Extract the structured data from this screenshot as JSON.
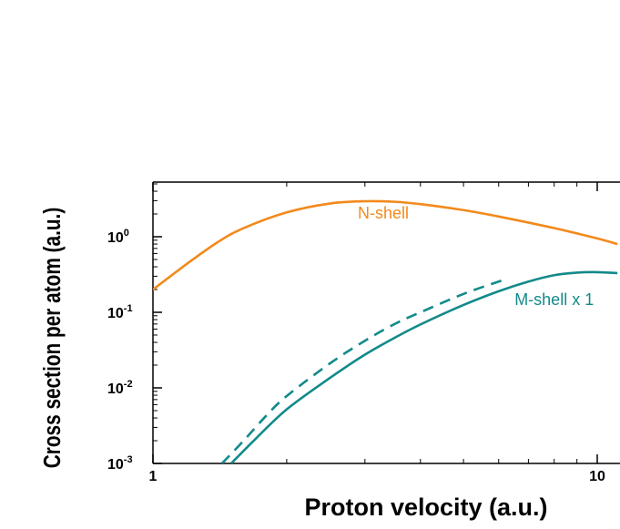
{
  "chart_data": {
    "type": "line",
    "title": "",
    "xlabel": "Proton velocity (a.u.)",
    "ylabel": "Cross section per atom (a.u.)",
    "xscale": "log",
    "yscale": "log",
    "xlim": [
      1,
      11.1
    ],
    "ylim": [
      0.001,
      5
    ],
    "grid": false,
    "x_ticks": [
      {
        "value": 1,
        "label": "1"
      },
      {
        "value": 10,
        "label": "10"
      }
    ],
    "y_ticks": [
      {
        "value": 0.001,
        "base": "10",
        "exp": "-3"
      },
      {
        "value": 0.01,
        "base": "10",
        "exp": "-2"
      },
      {
        "value": 0.1,
        "base": "10",
        "exp": "-1"
      },
      {
        "value": 1,
        "base": "10",
        "exp": "0"
      }
    ],
    "series": [
      {
        "name": "N-shell",
        "color": "#f28a1c",
        "style": "solid",
        "x": [
          1.0,
          1.2,
          1.4,
          1.6,
          2.0,
          2.5,
          3.0,
          3.5,
          4.0,
          5.0,
          6.0,
          8.0,
          10.0,
          11.1
        ],
        "y": [
          0.2,
          0.45,
          0.85,
          1.3,
          2.1,
          2.75,
          2.95,
          2.9,
          2.7,
          2.25,
          1.85,
          1.3,
          0.95,
          0.8
        ]
      },
      {
        "name": "M-shell x",
        "color": "#138a8a",
        "style": "solid",
        "x": [
          1.5,
          1.7,
          2.0,
          2.5,
          3.0,
          3.5,
          4.0,
          5.0,
          6.0,
          7.0,
          8.0,
          9.0,
          10.0,
          11.1
        ],
        "y": [
          0.001,
          0.0021,
          0.0052,
          0.0135,
          0.0275,
          0.046,
          0.069,
          0.125,
          0.19,
          0.255,
          0.31,
          0.335,
          0.34,
          0.33
        ]
      },
      {
        "name": "",
        "color": "#138a8a",
        "style": "dashed",
        "x": [
          1.43,
          1.6,
          1.8,
          2.0,
          2.5,
          3.0,
          3.5,
          4.0,
          5.0,
          6.0,
          6.3
        ],
        "y": [
          0.001,
          0.002,
          0.0043,
          0.0078,
          0.021,
          0.042,
          0.07,
          0.1,
          0.175,
          0.255,
          0.28
        ]
      }
    ],
    "annotations": [
      {
        "text": "N-shell",
        "x": 3.3,
        "y": 1.75,
        "color": "#f28a1c"
      },
      {
        "text": "M-shell x 1",
        "x": 8.0,
        "y": 0.125,
        "color": "#138a8a"
      }
    ]
  }
}
